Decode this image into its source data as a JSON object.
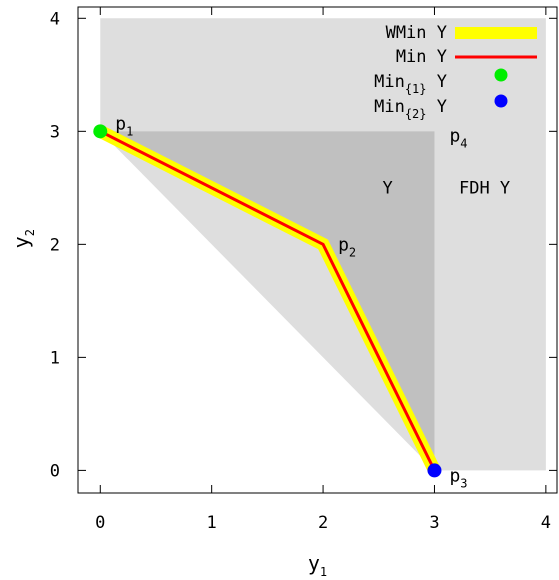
{
  "chart_data": {
    "type": "line",
    "xlim": [
      -0.2,
      4.1
    ],
    "ylim": [
      -0.2,
      4.1
    ],
    "x_ticks": [
      "0",
      "1",
      "2",
      "3",
      "4"
    ],
    "y_ticks": [
      "0",
      "1",
      "2",
      "3",
      "4"
    ],
    "xlabel": {
      "base": "y",
      "sub": "1"
    },
    "ylabel": {
      "base": "y",
      "sub": "2"
    },
    "grid": false,
    "legend_position": "top-right",
    "colors": {
      "fdh_region": "#dedede",
      "y_region": "#c0c0c0",
      "wmin": "#ffff00",
      "min": "#ff0000",
      "min1": "#00ee00",
      "min2": "#0000ff"
    },
    "regions": [
      {
        "label": "FDH Y",
        "polygon": [
          [
            0,
            3
          ],
          [
            0,
            4
          ],
          [
            4,
            4
          ],
          [
            4,
            0
          ],
          [
            3,
            0
          ]
        ]
      },
      {
        "label": "Y",
        "polygon": [
          [
            0,
            3
          ],
          [
            2,
            2
          ],
          [
            3,
            0
          ],
          [
            3,
            3
          ]
        ]
      }
    ],
    "series": [
      {
        "name": "WMin Y",
        "kind": "line",
        "points": [
          [
            0,
            3
          ],
          [
            2,
            2
          ],
          [
            3,
            0
          ]
        ]
      },
      {
        "name": "Min Y",
        "kind": "line",
        "points": [
          [
            0,
            3
          ],
          [
            2,
            2
          ],
          [
            3,
            0
          ]
        ]
      },
      {
        "name": "Min",
        "name_sub": "{1}",
        "name_suffix": "Y",
        "kind": "point",
        "points": [
          [
            0,
            3
          ]
        ]
      },
      {
        "name": "Min",
        "name_sub": "{2}",
        "name_suffix": "Y",
        "kind": "point",
        "points": [
          [
            3,
            0
          ]
        ]
      }
    ],
    "annotations": [
      {
        "base": "p",
        "sub": "1",
        "at": [
          0,
          3
        ]
      },
      {
        "base": "p",
        "sub": "2",
        "at": [
          2,
          2
        ]
      },
      {
        "base": "p",
        "sub": "3",
        "at": [
          3,
          0
        ]
      },
      {
        "base": "p",
        "sub": "4",
        "at": [
          3,
          3
        ]
      }
    ]
  }
}
